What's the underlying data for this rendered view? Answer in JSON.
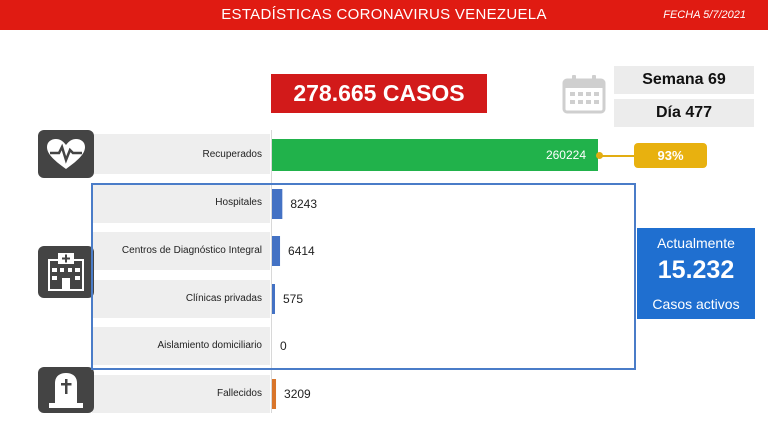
{
  "header": {
    "title": "ESTADÍSTICAS CORONAVIRUS VENEZUELA",
    "date": "FECHA 5/7/2021"
  },
  "summary": {
    "total_cases": "278.665 CASOS",
    "week": "Semana 69",
    "day": "Día 477",
    "recovered_pct": "93%"
  },
  "active": {
    "title": "Actualmente",
    "value": "15.232",
    "subtitle": "Casos activos"
  },
  "icons": {
    "recovered": "heart-pulse-icon",
    "hospital": "hospital-icon",
    "deaths": "tombstone-icon",
    "calendar": "calendar-icon"
  },
  "colors": {
    "header": "#e01b12",
    "cases_box": "#d21a1a",
    "recovered_bar": "#21b24b",
    "care_bar": "#4472c4",
    "deaths_bar": "#d9752a",
    "percent_badge": "#e8b10f",
    "active_box": "#1f6fd0"
  },
  "chart_data": {
    "type": "bar",
    "orientation": "horizontal",
    "categories": [
      "Recuperados",
      "Hospitales",
      "Centros de Diagnóstico Integral",
      "Clínicas privadas",
      "Aislamiento domiciliario",
      "Fallecidos"
    ],
    "values": [
      260224,
      8243,
      6414,
      575,
      0,
      3209
    ],
    "value_labels": [
      "260224",
      "8243",
      "6414",
      "575",
      "0",
      "3209"
    ],
    "xlim": [
      0,
      260224
    ],
    "grid": false
  }
}
